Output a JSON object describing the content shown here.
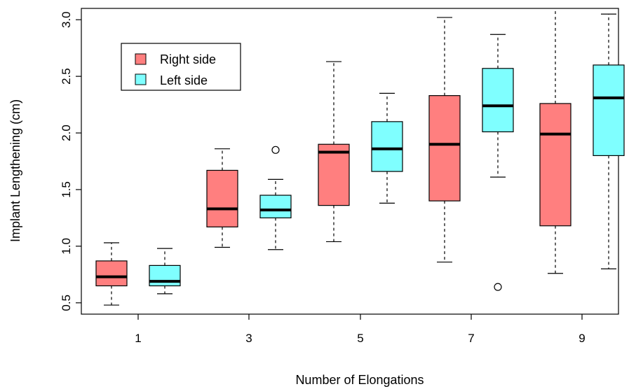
{
  "chart_data": {
    "type": "boxplot",
    "title": "",
    "xlabel": "Number of Elongations",
    "ylabel": "Implant Lengthening (cm)",
    "categories": [
      "1",
      "3",
      "5",
      "7",
      "9"
    ],
    "ylim": [
      0.4,
      3.1
    ],
    "yticks": [
      "0.5",
      "1.0",
      "1.5",
      "2.0",
      "2.5",
      "3.0"
    ],
    "grid": false,
    "legend_position": "top-left",
    "series": [
      {
        "name": "Right side",
        "color": "#FF7F7F",
        "boxes": [
          {
            "whisker_low": 0.48,
            "q1": 0.65,
            "median": 0.73,
            "q3": 0.87,
            "whisker_high": 1.03,
            "outliers": []
          },
          {
            "whisker_low": 0.99,
            "q1": 1.17,
            "median": 1.33,
            "q3": 1.67,
            "whisker_high": 1.86,
            "outliers": []
          },
          {
            "whisker_low": 1.04,
            "q1": 1.36,
            "median": 1.83,
            "q3": 1.9,
            "whisker_high": 2.63,
            "outliers": []
          },
          {
            "whisker_low": 0.86,
            "q1": 1.4,
            "median": 1.9,
            "q3": 2.33,
            "whisker_high": 3.02,
            "outliers": []
          },
          {
            "whisker_low": 0.76,
            "q1": 1.18,
            "median": 1.99,
            "q3": 2.26,
            "whisker_high": 3.1,
            "outliers": []
          }
        ]
      },
      {
        "name": "Left side",
        "color": "#7FFFFF",
        "boxes": [
          {
            "whisker_low": 0.58,
            "q1": 0.65,
            "median": 0.69,
            "q3": 0.83,
            "whisker_high": 0.98,
            "outliers": []
          },
          {
            "whisker_low": 0.97,
            "q1": 1.25,
            "median": 1.32,
            "q3": 1.45,
            "whisker_high": 1.59,
            "outliers": [
              1.85
            ]
          },
          {
            "whisker_low": 1.38,
            "q1": 1.66,
            "median": 1.86,
            "q3": 2.1,
            "whisker_high": 2.35,
            "outliers": []
          },
          {
            "whisker_low": 1.61,
            "q1": 2.01,
            "median": 2.24,
            "q3": 2.57,
            "whisker_high": 2.87,
            "outliers": [
              0.64
            ]
          },
          {
            "whisker_low": 0.8,
            "q1": 1.8,
            "median": 2.31,
            "q3": 2.6,
            "whisker_high": 3.05,
            "outliers": []
          }
        ]
      }
    ]
  }
}
